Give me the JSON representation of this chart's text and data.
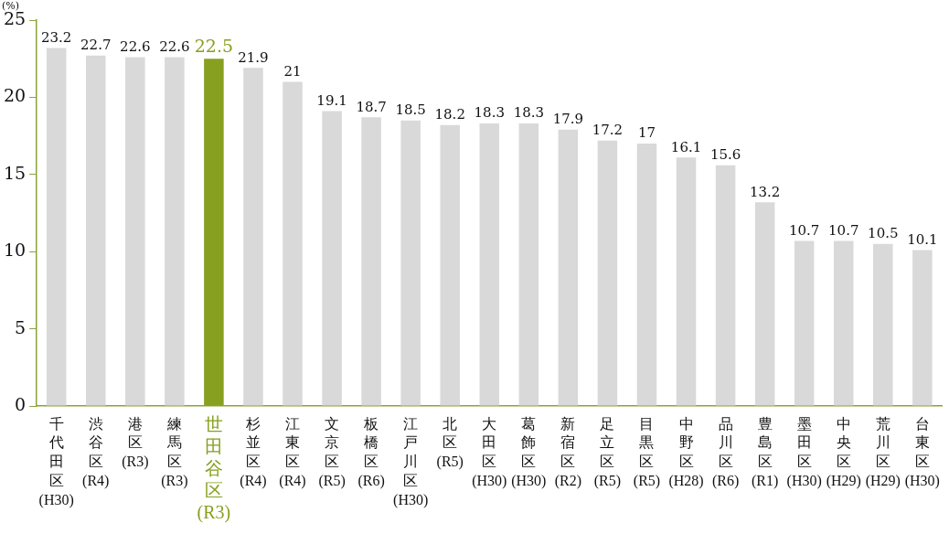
{
  "chart_data": {
    "type": "bar",
    "ylabel": "(%)",
    "categories": [
      "千代田区(H30)",
      "渋谷区(R4)",
      "港区(R3)",
      "練馬区(R3)",
      "世田谷区(R3)",
      "杉並区(R4)",
      "江東区(R4)",
      "文京区(R5)",
      "板橋区(R6)",
      "江戸川区(H30)",
      "北区(R5)",
      "大田区(H30)",
      "葛飾区(H30)",
      "新宿区(R2)",
      "足立区(R5)",
      "目黒区(R5)",
      "中野区(H28)",
      "品川区(R6)",
      "豊島区(R1)",
      "墨田区(H30)",
      "中央区(H29)",
      "荒川区(H29)",
      "台東区(H30)"
    ],
    "values": [
      23.2,
      22.7,
      22.6,
      22.6,
      22.5,
      21.9,
      21,
      19.1,
      18.7,
      18.5,
      18.2,
      18.3,
      18.3,
      17.9,
      17.2,
      17,
      16.1,
      15.6,
      13.2,
      10.7,
      10.7,
      10.5,
      10.1
    ],
    "colors": [
      "#d9d9d9",
      "#d9d9d9",
      "#d9d9d9",
      "#d9d9d9",
      "#87a020",
      "#d9d9d9",
      "#d9d9d9",
      "#d9d9d9",
      "#d9d9d9",
      "#d9d9d9",
      "#d9d9d9",
      "#d9d9d9",
      "#d9d9d9",
      "#d9d9d9",
      "#d9d9d9",
      "#d9d9d9",
      "#d9d9d9",
      "#d9d9d9",
      "#d9d9d9",
      "#d9d9d9",
      "#d9d9d9",
      "#d9d9d9",
      "#d9d9d9"
    ],
    "ylim": [
      0,
      25
    ],
    "yticks": [
      0,
      5,
      10,
      15,
      20,
      25
    ],
    "grid": false,
    "legend": false,
    "data_labels": true
  }
}
